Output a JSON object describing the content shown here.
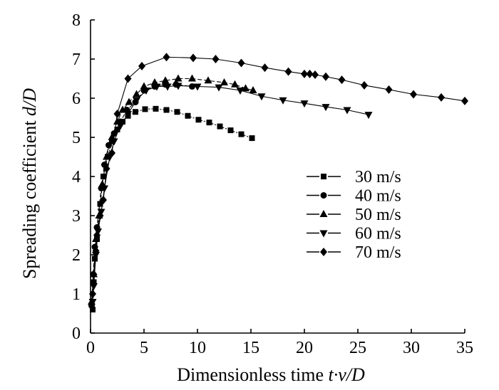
{
  "chart_data": {
    "type": "line",
    "title": "",
    "xlabel": "Dimensionless time t·v/D",
    "ylabel": "Spreading coefficient d/D",
    "xlabel_parts": {
      "prefix": "Dimensionless time ",
      "var": "t·v/D"
    },
    "ylabel_parts": {
      "prefix": "Spreading coefficient ",
      "var": "d/D"
    },
    "xlim": [
      0,
      35
    ],
    "ylim": [
      0,
      8
    ],
    "xticks": [
      0,
      5,
      10,
      15,
      20,
      25,
      30,
      35
    ],
    "yticks": [
      0,
      1,
      2,
      3,
      4,
      5,
      6,
      7,
      8
    ],
    "legend_position": "center-right",
    "series": [
      {
        "name": "30 m/s",
        "marker": "square",
        "dash": "dotted",
        "points": [
          [
            0.2,
            0.6
          ],
          [
            0.3,
            1.3
          ],
          [
            0.4,
            1.9
          ],
          [
            0.6,
            2.4
          ],
          [
            0.9,
            3.3
          ],
          [
            1.2,
            4.0
          ],
          [
            1.6,
            4.5
          ],
          [
            2.0,
            4.9
          ],
          [
            2.5,
            5.2
          ],
          [
            3.0,
            5.4
          ],
          [
            3.5,
            5.55
          ],
          [
            4.2,
            5.65
          ],
          [
            5.1,
            5.72
          ],
          [
            6.1,
            5.73
          ],
          [
            7.1,
            5.7
          ],
          [
            8.1,
            5.65
          ],
          [
            9.1,
            5.55
          ],
          [
            10.1,
            5.45
          ],
          [
            11.1,
            5.38
          ],
          [
            12.1,
            5.28
          ],
          [
            13.1,
            5.18
          ],
          [
            14.1,
            5.08
          ],
          [
            15.1,
            4.98
          ]
        ]
      },
      {
        "name": "40 m/s",
        "marker": "circle",
        "dash": "dashed",
        "points": [
          [
            0.1,
            0.7
          ],
          [
            0.25,
            1.5
          ],
          [
            0.4,
            2.2
          ],
          [
            0.6,
            2.7
          ],
          [
            1.0,
            3.7
          ],
          [
            1.3,
            4.3
          ],
          [
            1.7,
            4.8
          ],
          [
            2.2,
            5.1
          ],
          [
            2.8,
            5.4
          ],
          [
            3.4,
            5.7
          ],
          [
            4.2,
            5.9
          ],
          [
            5.0,
            6.2
          ],
          [
            6.0,
            6.3
          ],
          [
            7.0,
            6.35
          ],
          [
            8.0,
            6.35
          ],
          [
            9.5,
            6.3
          ]
        ]
      },
      {
        "name": "50 m/s",
        "marker": "triangle-up",
        "dash": "dashed",
        "points": [
          [
            0.1,
            0.8
          ],
          [
            0.3,
            1.5
          ],
          [
            0.5,
            2.4
          ],
          [
            0.8,
            3.0
          ],
          [
            1.1,
            3.8
          ],
          [
            1.5,
            4.5
          ],
          [
            2.0,
            5.0
          ],
          [
            2.5,
            5.4
          ],
          [
            3.0,
            5.7
          ],
          [
            3.6,
            5.9
          ],
          [
            4.3,
            6.1
          ],
          [
            5.0,
            6.3
          ],
          [
            6.0,
            6.4
          ],
          [
            7.0,
            6.45
          ],
          [
            8.2,
            6.5
          ],
          [
            9.5,
            6.5
          ],
          [
            11.0,
            6.45
          ],
          [
            12.5,
            6.4
          ],
          [
            13.5,
            6.35
          ],
          [
            14.5,
            6.25
          ],
          [
            15.2,
            6.2
          ]
        ]
      },
      {
        "name": "60 m/s",
        "marker": "triangle-down",
        "dash": "solid",
        "points": [
          [
            0.2,
            0.8
          ],
          [
            0.3,
            1.2
          ],
          [
            0.5,
            2.0
          ],
          [
            0.7,
            2.6
          ],
          [
            1.0,
            3.1
          ],
          [
            1.3,
            3.7
          ],
          [
            1.8,
            4.5
          ],
          [
            2.2,
            4.9
          ],
          [
            2.8,
            5.3
          ],
          [
            3.5,
            5.6
          ],
          [
            4.3,
            5.95
          ],
          [
            5.2,
            6.2
          ],
          [
            6.2,
            6.3
          ],
          [
            7.2,
            6.3
          ],
          [
            8.2,
            6.32
          ],
          [
            10.0,
            6.3
          ],
          [
            12.0,
            6.28
          ],
          [
            14.0,
            6.2
          ],
          [
            16.0,
            6.05
          ],
          [
            18.0,
            5.95
          ],
          [
            20.0,
            5.87
          ],
          [
            22.0,
            5.78
          ],
          [
            24.0,
            5.7
          ],
          [
            26.0,
            5.58
          ]
        ]
      },
      {
        "name": "70 m/s",
        "marker": "diamond",
        "dash": "solid",
        "points": [
          [
            0.2,
            1.0
          ],
          [
            0.3,
            1.5
          ],
          [
            0.5,
            2.1
          ],
          [
            0.6,
            2.5
          ],
          [
            0.9,
            3.0
          ],
          [
            1.2,
            3.4
          ],
          [
            1.5,
            4.2
          ],
          [
            2.0,
            4.6
          ],
          [
            2.5,
            5.6
          ],
          [
            3.5,
            6.5
          ],
          [
            4.8,
            6.82
          ],
          [
            7.1,
            7.05
          ],
          [
            9.6,
            7.03
          ],
          [
            11.7,
            7.0
          ],
          [
            14.1,
            6.9
          ],
          [
            16.3,
            6.78
          ],
          [
            18.5,
            6.68
          ],
          [
            20.0,
            6.62
          ],
          [
            20.5,
            6.62
          ],
          [
            21.0,
            6.6
          ],
          [
            22.0,
            6.55
          ],
          [
            23.5,
            6.47
          ],
          [
            25.6,
            6.33
          ],
          [
            27.9,
            6.22
          ],
          [
            30.2,
            6.1
          ],
          [
            32.8,
            6.02
          ],
          [
            35.0,
            5.93
          ]
        ]
      }
    ]
  }
}
